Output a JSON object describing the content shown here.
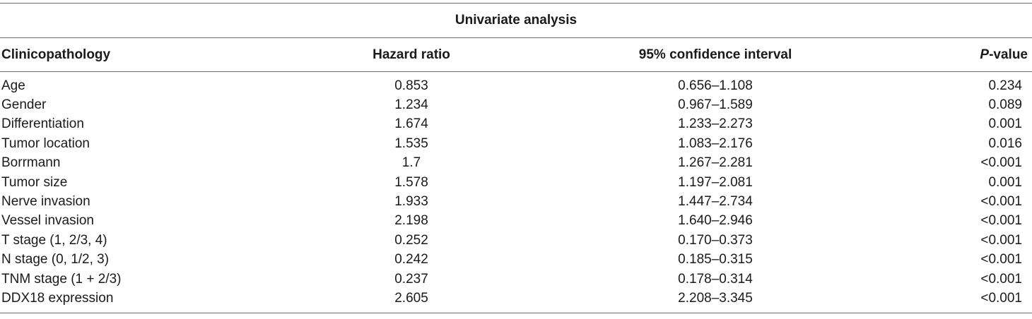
{
  "table": {
    "group_header": "Univariate analysis",
    "columns": {
      "clinicopathology": "Clinicopathology",
      "hazard_ratio": "Hazard ratio",
      "ci": "95% confidence interval",
      "p_italic": "P",
      "p_suffix": "-value"
    },
    "rows": [
      {
        "name": "Age",
        "hr": "0.853",
        "ci": "0.656–1.108",
        "p": "0.234"
      },
      {
        "name": "Gender",
        "hr": "1.234",
        "ci": "0.967–1.589",
        "p": "0.089"
      },
      {
        "name": "Differentiation",
        "hr": "1.674",
        "ci": "1.233–2.273",
        "p": "0.001"
      },
      {
        "name": "Tumor location",
        "hr": "1.535",
        "ci": "1.083–2.176",
        "p": "0.016"
      },
      {
        "name": "Borrmann",
        "hr": "1.7",
        "ci": "1.267–2.281",
        "p": "<0.001"
      },
      {
        "name": "Tumor size",
        "hr": "1.578",
        "ci": "1.197–2.081",
        "p": "0.001"
      },
      {
        "name": "Nerve invasion",
        "hr": "1.933",
        "ci": "1.447–2.734",
        "p": "<0.001"
      },
      {
        "name": "Vessel invasion",
        "hr": "2.198",
        "ci": "1.640–2.946",
        "p": "<0.001"
      },
      {
        "name": "T stage (1, 2/3, 4)",
        "hr": "0.252",
        "ci": "0.170–0.373",
        "p": "<0.001"
      },
      {
        "name": "N stage (0, 1/2, 3)",
        "hr": "0.242",
        "ci": "0.185–0.315",
        "p": "<0.001"
      },
      {
        "name": "TNM stage (1 + 2/3)",
        "hr": "0.237",
        "ci": "0.178–0.314",
        "p": "<0.001"
      },
      {
        "name": "DDX18 expression",
        "hr": "2.605",
        "ci": "2.208–3.345",
        "p": "<0.001"
      }
    ]
  }
}
